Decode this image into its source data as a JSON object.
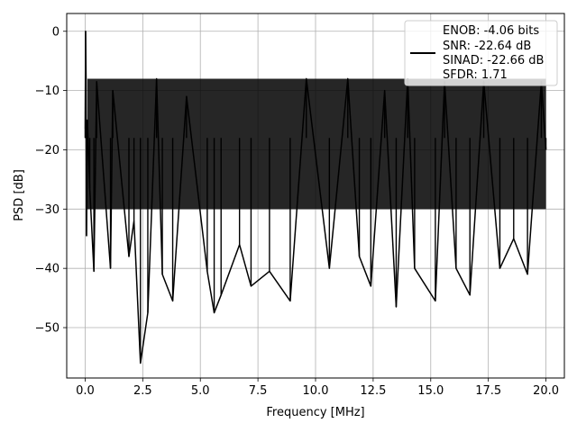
{
  "chart_data": {
    "type": "line",
    "title": "",
    "xlabel": "Frequency [MHz]",
    "ylabel": "PSD [dB]",
    "xlim": [
      -0.8,
      20.8
    ],
    "ylim": [
      -58.5,
      3
    ],
    "grid": true,
    "legend_position": "top-right",
    "line_color": "#000000",
    "x_ticks": [
      {
        "value": 0.0,
        "label": "0.0"
      },
      {
        "value": 2.5,
        "label": "2.5"
      },
      {
        "value": 5.0,
        "label": "5.0"
      },
      {
        "value": 7.5,
        "label": "7.5"
      },
      {
        "value": 10.0,
        "label": "10.0"
      },
      {
        "value": 12.5,
        "label": "12.5"
      },
      {
        "value": 15.0,
        "label": "15.0"
      },
      {
        "value": 17.5,
        "label": "17.5"
      },
      {
        "value": 20.0,
        "label": "20.0"
      }
    ],
    "y_ticks": [
      {
        "value": 0,
        "label": "0"
      },
      {
        "value": -10,
        "label": "−10"
      },
      {
        "value": -20,
        "label": "−20"
      },
      {
        "value": -30,
        "label": "−30"
      },
      {
        "value": -40,
        "label": "−40"
      },
      {
        "value": -50,
        "label": "−50"
      }
    ],
    "legend_entries": [
      "ENOB: -4.06 bits",
      "SNR: -22.64 dB",
      "SINAD: -22.66 dB",
      "SFDR: 1.71"
    ],
    "series": [
      {
        "x": [
          0.0,
          0.02,
          0.04,
          0.06,
          0.1,
          0.2,
          0.38,
          0.5,
          1.1,
          1.2,
          1.9,
          2.12,
          2.4,
          2.72,
          3.1,
          3.35,
          3.8,
          4.4,
          5.3,
          5.6,
          5.9,
          6.7,
          7.2,
          8.0,
          8.9,
          9.6,
          10.6,
          11.4,
          11.9,
          12.4,
          13.0,
          13.5,
          14.0,
          14.3,
          15.2,
          15.6,
          16.1,
          16.7,
          17.3,
          18.0,
          18.6,
          19.2,
          19.8,
          20.0
        ],
        "y": [
          -16.5,
          0,
          -8,
          -34.5,
          -15,
          -26.5,
          -40.5,
          -8.5,
          -40,
          -10,
          -38,
          -32,
          -56,
          -47.5,
          -8,
          -41,
          -45.5,
          -11,
          -40.5,
          -47.5,
          -44.5,
          -36,
          -43,
          -40.5,
          -45.5,
          -8,
          -40,
          -8,
          -38,
          -43,
          -10,
          -46.5,
          -8,
          -40,
          -45.5,
          -8.5,
          -40,
          -44.5,
          -8.5,
          -40,
          -35,
          -41,
          -8.5,
          -20
        ]
      }
    ]
  }
}
